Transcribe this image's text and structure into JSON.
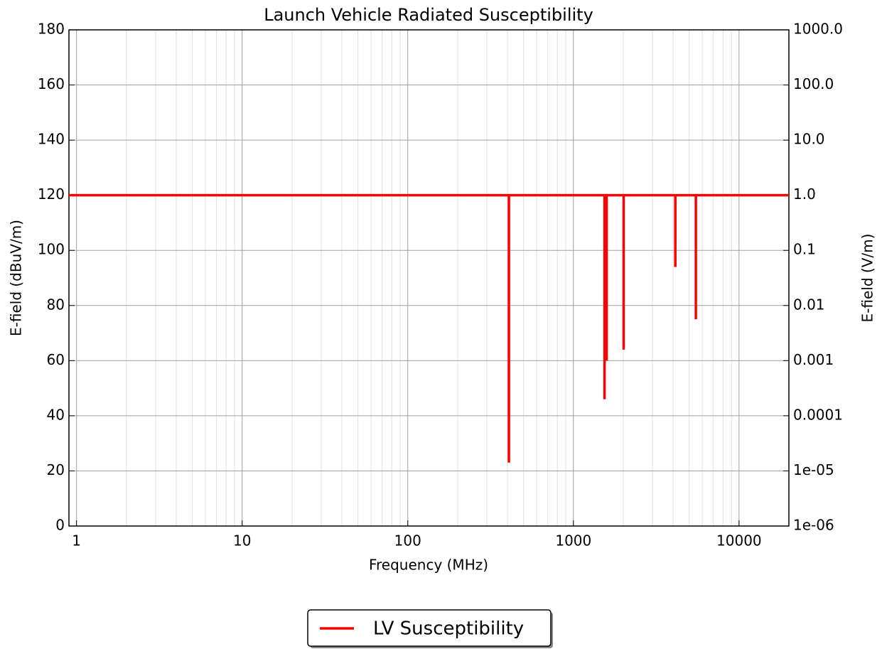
{
  "chart_data": {
    "type": "line",
    "title": "Launch Vehicle Radiated Susceptibility",
    "xlabel": "Frequency (MHz)",
    "ylabel": "E-field (dBuV/m)",
    "y2label": "E-field (V/m)",
    "xscale": "log",
    "xlim": [
      0.9,
      20000
    ],
    "xticks": [
      1,
      10,
      100,
      1000,
      10000
    ],
    "ylim": [
      0,
      180
    ],
    "yticks": [
      0,
      20,
      40,
      60,
      80,
      100,
      120,
      140,
      160,
      180
    ],
    "y2scale": "log",
    "y2lim": [
      1e-06,
      1000
    ],
    "y2ticks": [
      {
        "value": 1e-06,
        "label": "1e-06"
      },
      {
        "value": 1e-05,
        "label": "1e-05"
      },
      {
        "value": 0.0001,
        "label": "0.0001"
      },
      {
        "value": 0.001,
        "label": "0.001"
      },
      {
        "value": 0.01,
        "label": "0.01"
      },
      {
        "value": 0.1,
        "label": "0.1"
      },
      {
        "value": 1,
        "label": "1.0"
      },
      {
        "value": 10,
        "label": "10.0"
      },
      {
        "value": 100,
        "label": "100.0"
      },
      {
        "value": 1000,
        "label": "1000.0"
      }
    ],
    "grid": true,
    "minor_grid": true,
    "legend": "below",
    "series": [
      {
        "name": "LV Susceptibility",
        "color": "#ff0000",
        "x": [
          0.9,
          408,
          408,
          408,
          1542,
          1542,
          1542,
          1587,
          1587,
          1587,
          2010,
          2010,
          2010,
          4125,
          4125,
          4125,
          5486,
          5486,
          5486,
          20000
        ],
        "values": [
          120,
          120,
          23,
          120,
          120,
          46,
          120,
          120,
          60,
          120,
          120,
          64,
          120,
          120,
          94,
          120,
          120,
          75,
          120,
          120
        ]
      }
    ]
  }
}
